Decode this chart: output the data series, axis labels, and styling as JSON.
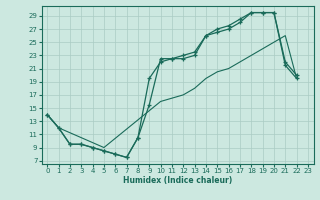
{
  "xlabel": "Humidex (Indice chaleur)",
  "ylabel": "",
  "bg_color": "#cce8e0",
  "line_color": "#1a6b5a",
  "grid_color": "#aaccC4",
  "xlim": [
    -0.5,
    23.5
  ],
  "ylim": [
    6.5,
    30.5
  ],
  "xticks": [
    0,
    1,
    2,
    3,
    4,
    5,
    6,
    7,
    8,
    9,
    10,
    11,
    12,
    13,
    14,
    15,
    16,
    17,
    18,
    19,
    20,
    21,
    22,
    23
  ],
  "yticks": [
    7,
    9,
    11,
    13,
    15,
    17,
    19,
    21,
    23,
    25,
    27,
    29
  ],
  "line1_x": [
    0,
    1,
    2,
    3,
    4,
    5,
    6,
    7,
    8,
    9,
    10,
    11,
    12,
    13,
    14,
    15,
    16,
    17,
    18,
    19,
    20,
    21,
    22
  ],
  "line1_y": [
    14,
    12,
    9.5,
    9.5,
    9,
    8.5,
    8,
    7.5,
    10.5,
    15.5,
    22.5,
    22.5,
    23,
    23.5,
    26,
    27,
    27.5,
    28.5,
    29.5,
    29.5,
    29.5,
    22,
    20
  ],
  "line2_x": [
    0,
    1,
    2,
    3,
    4,
    5,
    6,
    7,
    8,
    9,
    10,
    11,
    12,
    13,
    14,
    15,
    16,
    17,
    18,
    19,
    20,
    21,
    22
  ],
  "line2_y": [
    14,
    12,
    9.5,
    9.5,
    9,
    8.5,
    8,
    7.5,
    10.5,
    19.5,
    22,
    22.5,
    22.5,
    23,
    26,
    26.5,
    27,
    28,
    29.5,
    29.5,
    29.5,
    21.5,
    19.5
  ],
  "line3_x": [
    0,
    1,
    5,
    10,
    11,
    12,
    13,
    14,
    15,
    16,
    17,
    18,
    19,
    20,
    21,
    22
  ],
  "line3_y": [
    14,
    12,
    9,
    16,
    16.5,
    17,
    18,
    19.5,
    20.5,
    21,
    22,
    23,
    24,
    25,
    26,
    19.5
  ]
}
